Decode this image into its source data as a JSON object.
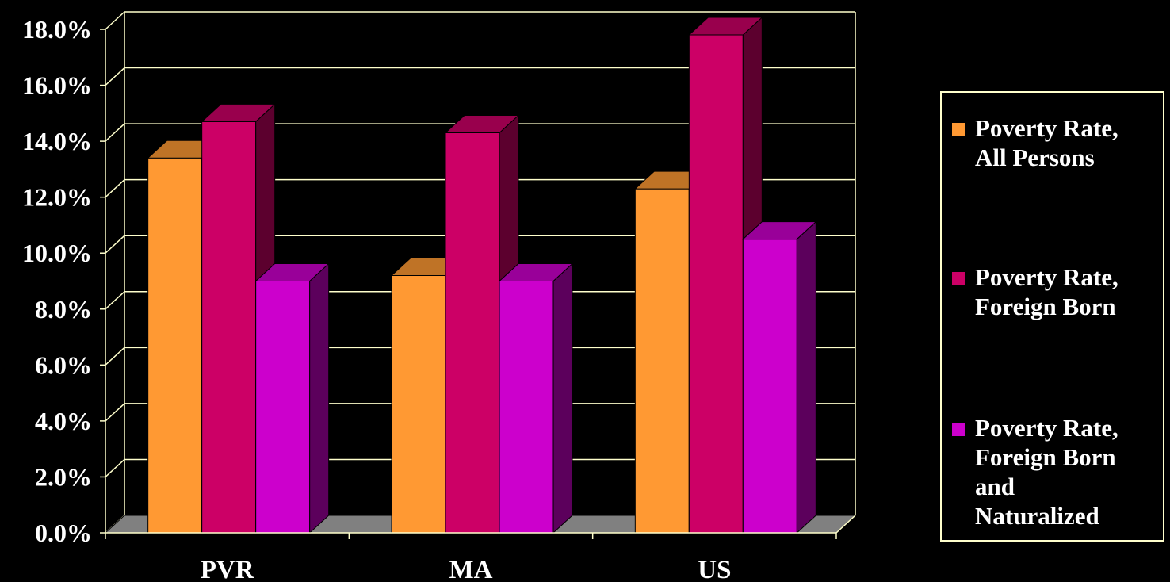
{
  "chart_data": {
    "type": "bar",
    "title": "",
    "xlabel": "",
    "ylabel": "",
    "categories": [
      "PVR",
      "MA",
      "US"
    ],
    "series": [
      {
        "name": "Poverty Rate, All Persons",
        "values": [
          13.4,
          9.2,
          12.3
        ],
        "color": "#ff9933"
      },
      {
        "name": "Poverty Rate, Foreign Born",
        "values": [
          14.7,
          14.3,
          17.8
        ],
        "color": "#cc0066"
      },
      {
        "name": "Poverty Rate, Foreign Born and Naturalized",
        "values": [
          9.0,
          9.0,
          10.5
        ],
        "color": "#cc00cc"
      }
    ],
    "ylim": [
      0,
      18
    ],
    "yticks": [
      "0.0%",
      "2.0%",
      "4.0%",
      "6.0%",
      "8.0%",
      "10.0%",
      "12.0%",
      "14.0%",
      "16.0%",
      "18.0%"
    ],
    "grid": true,
    "legend_position": "right",
    "style": "3d-clustered-column"
  },
  "legend": {
    "items": [
      {
        "label": "Poverty Rate,\nAll Persons",
        "color": "#ff9933"
      },
      {
        "label": "Poverty Rate,\nForeign Born",
        "color": "#cc0066"
      },
      {
        "label": "Poverty Rate,\nForeign Born\nand\nNaturalized",
        "color": "#cc00cc"
      }
    ]
  },
  "colors": {
    "background": "#000000",
    "grid": "#ffffcc",
    "floor": "#808080",
    "text": "#ffffff"
  }
}
